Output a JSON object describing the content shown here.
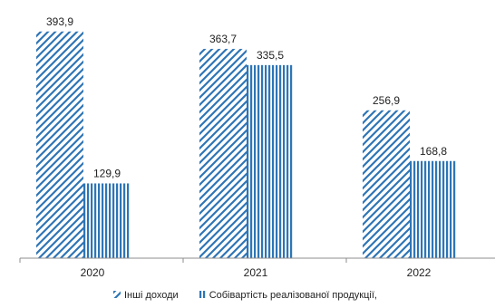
{
  "chart_data": {
    "type": "bar",
    "categories": [
      "2020",
      "2021",
      "2022"
    ],
    "series": [
      {
        "name": "Інші доходи",
        "values": [
          393.9,
          363.7,
          256.9
        ],
        "labels": [
          "393,9",
          "363,7",
          "256,9"
        ],
        "pattern": "diagonal-stripes"
      },
      {
        "name": "Собівартість реалізованої продукції,",
        "values": [
          129.9,
          335.5,
          168.8
        ],
        "labels": [
          "129,9",
          "335,5",
          "168,8"
        ],
        "pattern": "vertical-stripes"
      }
    ],
    "ylim": [
      0,
      425
    ],
    "grid": false,
    "legend_position": "bottom",
    "colors": {
      "bar": "#2e75b6",
      "axis": "#8c8c8c",
      "text": "#222222"
    }
  }
}
